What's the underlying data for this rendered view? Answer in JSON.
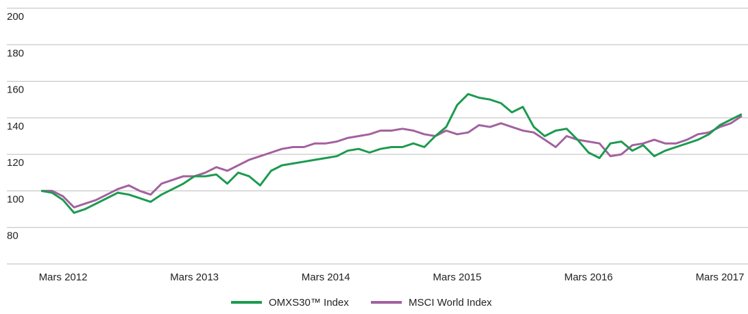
{
  "chart_data": {
    "type": "line",
    "x": [
      "2012-01",
      "2012-02",
      "2012-03",
      "2012-04",
      "2012-05",
      "2012-06",
      "2012-07",
      "2012-08",
      "2012-09",
      "2012-10",
      "2012-11",
      "2012-12",
      "2013-01",
      "2013-02",
      "2013-03",
      "2013-04",
      "2013-05",
      "2013-06",
      "2013-07",
      "2013-08",
      "2013-09",
      "2013-10",
      "2013-11",
      "2013-12",
      "2014-01",
      "2014-02",
      "2014-03",
      "2014-04",
      "2014-05",
      "2014-06",
      "2014-07",
      "2014-08",
      "2014-09",
      "2014-10",
      "2014-11",
      "2014-12",
      "2015-01",
      "2015-02",
      "2015-03",
      "2015-04",
      "2015-05",
      "2015-06",
      "2015-07",
      "2015-08",
      "2015-09",
      "2015-10",
      "2015-11",
      "2015-12",
      "2016-01",
      "2016-02",
      "2016-03",
      "2016-04",
      "2016-05",
      "2016-06",
      "2016-07",
      "2016-08",
      "2016-09",
      "2016-10",
      "2016-11",
      "2016-12",
      "2017-01",
      "2017-02",
      "2017-03",
      "2017-04",
      "2017-05"
    ],
    "series": [
      {
        "name": "OMXS30™ Index",
        "color": "#1c9a4f",
        "values": [
          100,
          99,
          95,
          88,
          90,
          93,
          96,
          99,
          98,
          96,
          94,
          98,
          101,
          104,
          108,
          108,
          109,
          104,
          110,
          108,
          103,
          111,
          114,
          115,
          116,
          117,
          118,
          119,
          122,
          123,
          121,
          123,
          124,
          124,
          126,
          124,
          130,
          135,
          147,
          153,
          151,
          150,
          148,
          143,
          146,
          135,
          130,
          133,
          134,
          128,
          121,
          118,
          126,
          127,
          122,
          125,
          119,
          122,
          124,
          126,
          128,
          131,
          136,
          139,
          142
        ]
      },
      {
        "name": "MSCI World Index",
        "color": "#a2619f",
        "values": [
          100,
          100,
          97,
          91,
          93,
          95,
          98,
          101,
          103,
          100,
          98,
          104,
          106,
          108,
          108,
          110,
          113,
          111,
          114,
          117,
          119,
          121,
          123,
          124,
          124,
          126,
          126,
          127,
          129,
          130,
          131,
          133,
          133,
          134,
          133,
          131,
          130,
          133,
          131,
          132,
          136,
          135,
          137,
          135,
          133,
          132,
          128,
          124,
          130,
          128,
          127,
          126,
          119,
          120,
          125,
          126,
          128,
          126,
          126,
          128,
          131,
          132,
          135,
          137,
          141
        ]
      }
    ],
    "xticks": [
      {
        "value": "2012-03",
        "label": "Mars 2012"
      },
      {
        "value": "2013-03",
        "label": "Mars 2013"
      },
      {
        "value": "2014-03",
        "label": "Mars 2014"
      },
      {
        "value": "2015-03",
        "label": "Mars 2015"
      },
      {
        "value": "2016-03",
        "label": "Mars 2016"
      },
      {
        "value": "2017-03",
        "label": "Mars 2017"
      }
    ],
    "ylim": [
      60,
      200
    ],
    "yticks": [
      80,
      100,
      120,
      140,
      160,
      180,
      200
    ],
    "grid": true,
    "legend": "bottom"
  }
}
